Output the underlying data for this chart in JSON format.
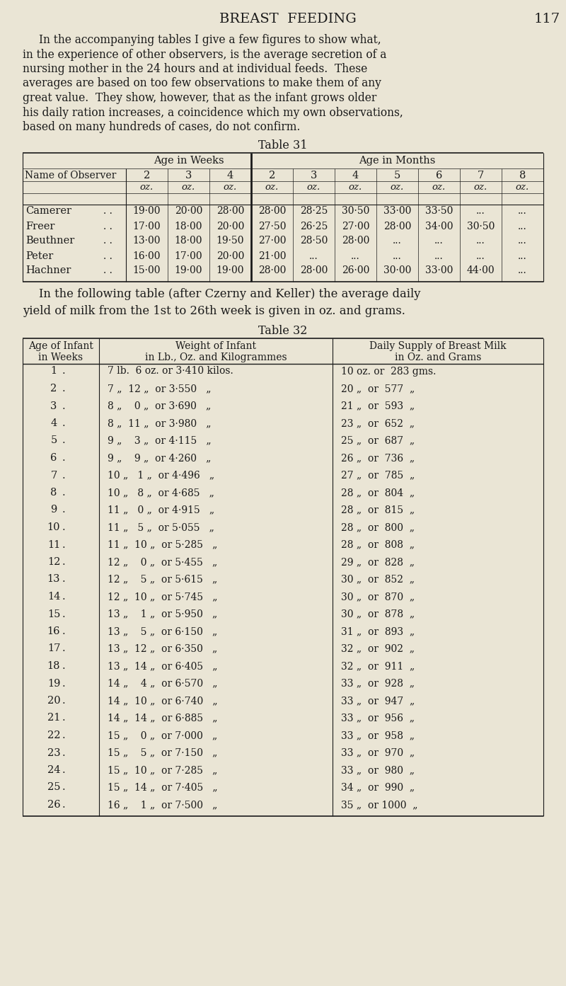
{
  "bg_color": "#EAE5D5",
  "text_color": "#1a1a1a",
  "page_title": "BREAST  FEEDING",
  "page_number": "117",
  "intro_lines": [
    "In the accompanying tables I give a few figures to show what,",
    "in the experience of other observers, is the average secretion of a",
    "nursing mother in the 24 hours and at individual feeds.  These",
    "averages are based on too few observations to make them of any",
    "great value.  They show, however, that as the infant grows older",
    "his daily ration increases, a coincidence which my own observations,",
    "based on many hundreds of cases, do not confirm."
  ],
  "table31_title": "Table 31",
  "table31_headers_sub": [
    "2",
    "3",
    "4",
    "2",
    "3",
    "4",
    "5",
    "6",
    "7",
    "8"
  ],
  "table31_rows": [
    [
      "Camerer",
      "19·00",
      "20·00",
      "28·00",
      "28·00",
      "28·25",
      "30·50",
      "33·00",
      "33·50",
      "...",
      "..."
    ],
    [
      "Freer",
      "17·00",
      "18·00",
      "20·00",
      "27·50",
      "26·25",
      "27·00",
      "28·00",
      "34·00",
      "30·50",
      "..."
    ],
    [
      "Beuthner",
      "13·00",
      "18·00",
      "19·50",
      "27·00",
      "28·50",
      "28·00",
      "...",
      "...",
      "...",
      "..."
    ],
    [
      "Peter",
      "16·00",
      "17·00",
      "20·00",
      "21·00",
      "...",
      "...",
      "...",
      "...",
      "...",
      "..."
    ],
    [
      "Hachner",
      "15·00",
      "19·00",
      "19·00",
      "28·00",
      "28·00",
      "26·00",
      "30·00",
      "33·00",
      "44·00",
      "..."
    ]
  ],
  "inter_lines": [
    "In the following table (after Czerny and Keller) the average daily",
    "yield of milk from the 1st to 26th week is given in oz. and grams."
  ],
  "table32_title": "Table 32",
  "table32_rows": [
    [
      "1",
      "7 lb.  6 oz. or 3·410 kilos.",
      "10 oz. or  283 gms."
    ],
    [
      "2",
      "7 „  12 „  or 3·550   „",
      "20 „  or  577  „"
    ],
    [
      "3",
      "8 „    0 „  or 3·690   „",
      "21 „  or  593  „"
    ],
    [
      "4",
      "8 „  11 „  or 3·980   „",
      "23 „  or  652  „"
    ],
    [
      "5",
      "9 „    3 „  or 4·115   „",
      "25 „  or  687  „"
    ],
    [
      "6",
      "9 „    9 „  or 4·260   „",
      "26 „  or  736  „"
    ],
    [
      "7",
      "10 „   1 „  or 4·496   „",
      "27 „  or  785  „"
    ],
    [
      "8",
      "10 „   8 „  or 4·685   „",
      "28 „  or  804  „"
    ],
    [
      "9",
      "11 „   0 „  or 4·915   „",
      "28 „  or  815  „"
    ],
    [
      "10",
      "11 „   5 „  or 5·055   „",
      "28 „  or  800  „"
    ],
    [
      "11",
      "11 „  10 „  or 5·285   „",
      "28 „  or  808  „"
    ],
    [
      "12",
      "12 „    0 „  or 5·455   „",
      "29 „  or  828  „"
    ],
    [
      "13",
      "12 „    5 „  or 5·615   „",
      "30 „  or  852  „"
    ],
    [
      "14",
      "12 „  10 „  or 5·745   „",
      "30 „  or  870  „"
    ],
    [
      "15",
      "13 „    1 „  or 5·950   „",
      "30 „  or  878  „"
    ],
    [
      "16",
      "13 „    5 „  or 6·150   „",
      "31 „  or  893  „"
    ],
    [
      "17",
      "13 „  12 „  or 6·350   „",
      "32 „  or  902  „"
    ],
    [
      "18",
      "13 „  14 „  or 6·405   „",
      "32 „  or  911  „"
    ],
    [
      "19",
      "14 „    4 „  or 6·570   „",
      "33 „  or  928  „"
    ],
    [
      "20",
      "14 „  10 „  or 6·740   „",
      "33 „  or  947  „"
    ],
    [
      "21",
      "14 „  14 „  or 6·885   „",
      "33 „  or  956  „"
    ],
    [
      "22",
      "15 „    0 „  or 7·000   „",
      "33 „  or  958  „"
    ],
    [
      "23",
      "15 „    5 „  or 7·150   „",
      "33 „  or  970  „"
    ],
    [
      "24",
      "15 „  10 „  or 7·285   „",
      "33 „  or  980  „"
    ],
    [
      "25",
      "15 „  14 „  or 7·405   „",
      "34 „  or  990  „"
    ],
    [
      "26",
      "16 „    1 „  or 7·500   „",
      "35 „  or 1000  „"
    ]
  ]
}
